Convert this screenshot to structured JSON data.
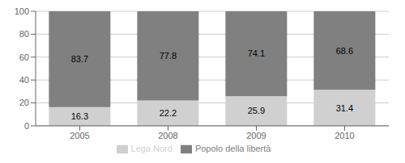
{
  "chart_data": {
    "type": "bar",
    "stacked": true,
    "categories": [
      "2005",
      "2008",
      "2009",
      "2010"
    ],
    "series": [
      {
        "name": "Lega Nord",
        "color": "#d0d0d0",
        "values": [
          16.3,
          22.2,
          25.9,
          31.4
        ]
      },
      {
        "name": "Popolo della libertà",
        "color": "#808080",
        "values": [
          83.7,
          77.8,
          74.1,
          68.6
        ]
      }
    ],
    "ylim": [
      0,
      100
    ],
    "yticks": [
      0,
      20,
      40,
      60,
      80,
      100
    ],
    "grid": true,
    "legend": "bottom",
    "data_labels": true
  }
}
